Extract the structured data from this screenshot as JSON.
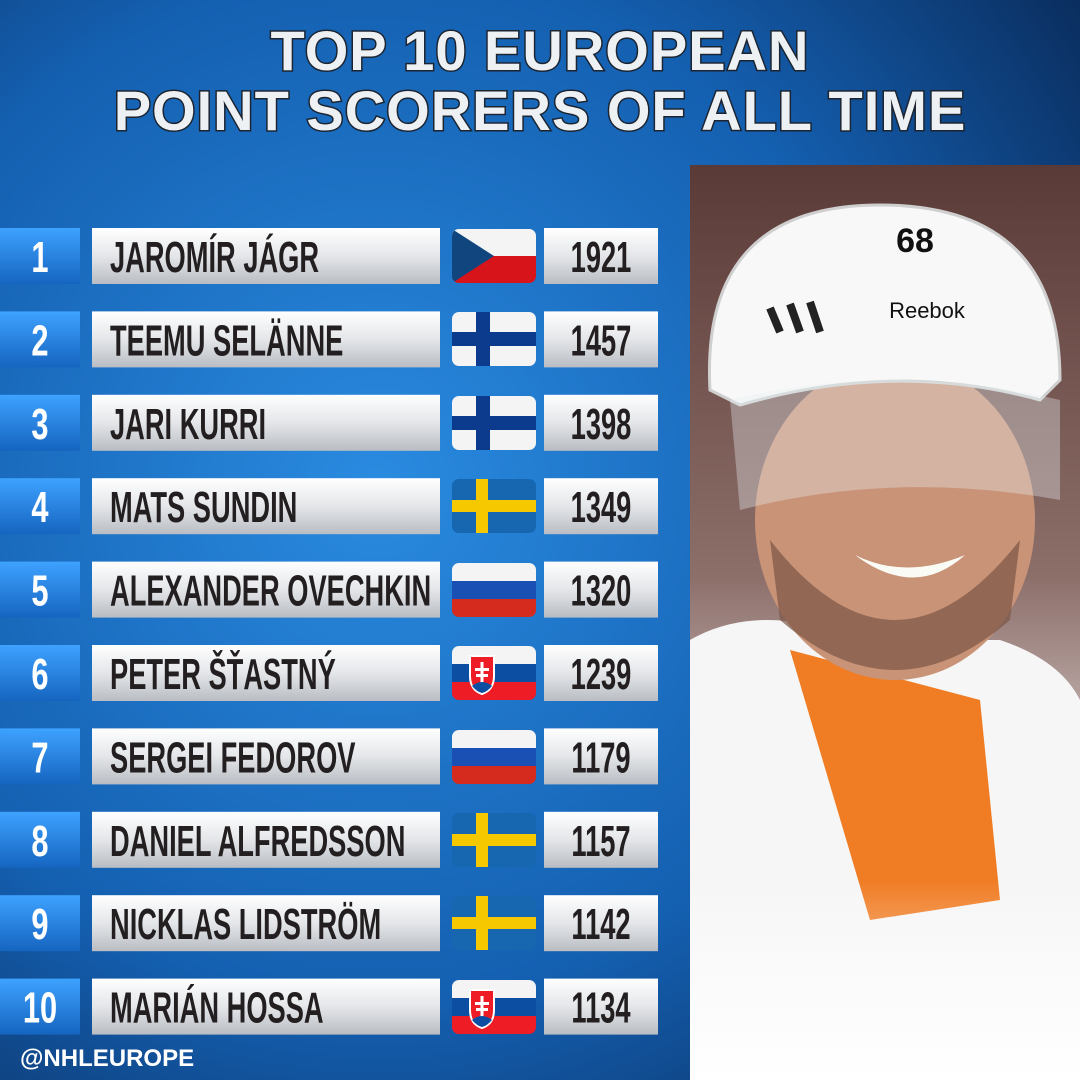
{
  "header": {
    "title": [
      "TOP 10 EUROPEAN",
      "POINT SCORERS OF ALL TIME"
    ]
  },
  "table": {
    "rows": [
      [
        1,
        "JAROMÍR JÁGR",
        1921
      ],
      [
        2,
        "TEEMU SELÄNNE",
        1457
      ],
      [
        3,
        "JARI KURRI",
        1398
      ],
      [
        4,
        "MATS SUNDIN",
        1349
      ],
      [
        5,
        "ALEXANDER OVECHKIN",
        1320
      ],
      [
        6,
        "PETER ŠŤASTNÝ",
        1239
      ],
      [
        7,
        "SERGEI FEDOROV",
        1179
      ],
      [
        8,
        "DANIEL ALFREDSSON",
        1157
      ],
      [
        9,
        "NICKLAS LIDSTRÖM",
        1142
      ],
      [
        10,
        "MARIÁN HOSSA",
        1134
      ]
    ]
  },
  "photo": {
    "helmet_number": "68",
    "helmet_brand": "Reebok"
  },
  "footer": {
    "handle": "@NHLEUROPE"
  }
}
